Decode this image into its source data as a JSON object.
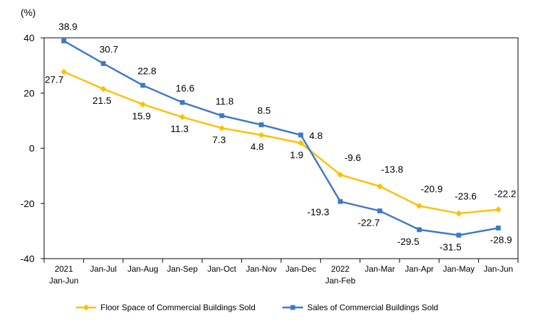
{
  "chart_data": {
    "type": "line",
    "unit_label": "(%)",
    "categories": [
      [
        "2021",
        "Jan-Jun"
      ],
      [
        "Jan-Jul"
      ],
      [
        "Jan-Aug"
      ],
      [
        "Jan-Sep"
      ],
      [
        "Jan-Oct"
      ],
      [
        "Jan-Nov"
      ],
      [
        "Jan-Dec"
      ],
      [
        "2022",
        "Jan-Feb"
      ],
      [
        "Jan-Mar"
      ],
      [
        "Jan-Apr"
      ],
      [
        "Jan-May"
      ],
      [
        "Jan-Jun"
      ]
    ],
    "ylim": [
      -40,
      40
    ],
    "yticks": [
      -40,
      -20,
      0,
      20,
      40
    ],
    "grid": false,
    "legend_position": "bottom",
    "series": [
      {
        "name": "Floor Space of Commercial Buildings Sold",
        "color": "#FFC000",
        "marker": "diamond",
        "values": [
          27.7,
          21.5,
          15.9,
          11.3,
          7.3,
          4.8,
          1.9,
          -9.6,
          -13.8,
          -20.9,
          -23.6,
          -22.2
        ],
        "labels": [
          "27.7",
          "21.5",
          "15.9",
          "11.3",
          "7.3",
          "4.8",
          "1.9",
          "-9.6",
          "-13.8",
          "-20.9",
          "-23.6",
          "-22.2"
        ]
      },
      {
        "name": "Sales of Commercial Buildings Sold",
        "color": "#3C78C8",
        "marker": "square",
        "values": [
          38.9,
          30.7,
          22.8,
          16.6,
          11.8,
          8.5,
          4.8,
          -19.3,
          -22.7,
          -29.5,
          -31.5,
          -28.9
        ],
        "labels": [
          "38.9",
          "30.7",
          "22.8",
          "16.6",
          "11.8",
          "8.5",
          "4.8",
          "-19.3",
          "-22.7",
          "-29.5",
          "-31.5",
          "-28.9"
        ]
      }
    ]
  }
}
